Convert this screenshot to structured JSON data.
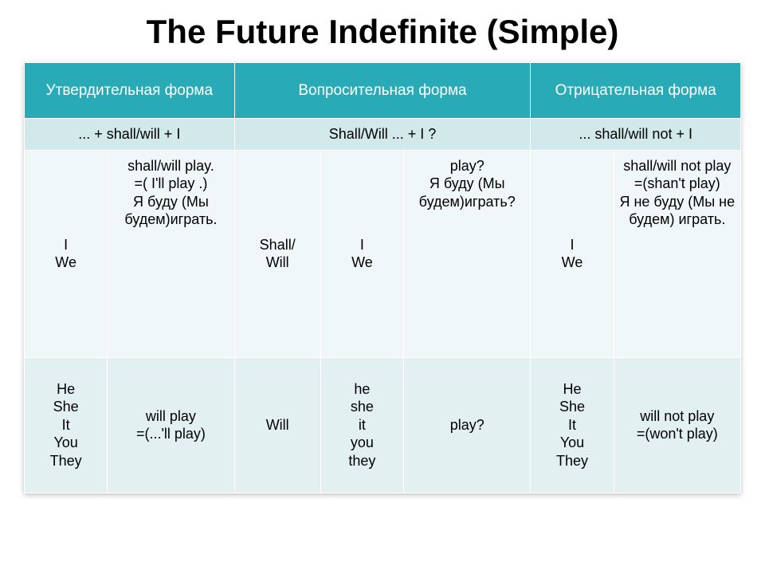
{
  "title": "The Future Indefinite (Simple)",
  "table": {
    "header_bg": "#29abb7",
    "header_color": "#ffffff",
    "formula_bg": "#d2e9eb",
    "row1_bg": "#eff7f8",
    "row2_bg": "#e2f0f2",
    "border_color": "#ffffff",
    "font_family": "Arial",
    "title_fontsize": 42,
    "header_fontsize": 19,
    "cell_fontsize": 18,
    "columns_pct": [
      10.6,
      16.2,
      11,
      10.6,
      16.2,
      10.6,
      16.2
    ],
    "headers": {
      "affirmative": "Утвердительная форма",
      "interrogative": "Вопросительная форма",
      "negative": "Отрицательная форма"
    },
    "formulas": {
      "affirmative": "...  + shall/will + I",
      "interrogative": "Shall/Will ... +  I ?",
      "negative": "... shall/will not +  I"
    },
    "row1": {
      "aff_pron": "I\nWe",
      "aff_text": "shall/will play.\n =( I'll play .)\nЯ буду (Мы будем)играть.",
      "int_aux": "Shall/\nWill",
      "int_pron": "I\nWe",
      "int_text": "play?\nЯ буду (Мы будем)играть?",
      "neg_pron": "I\nWe",
      "neg_text": "shall/will not play\n =(shan't play)\nЯ не буду (Мы не будем) играть."
    },
    "row2": {
      "aff_pron": "He\nShe\nIt\nYou\nThey",
      "aff_text": "will play\n =(...'ll play)",
      "int_aux": "Will",
      "int_pron": "he\nshe\nit\nyou\nthey",
      "int_text": "play?",
      "neg_pron": "He\nShe\nIt\nYou\nThey",
      "neg_text": "will not play\n=(won't play)"
    }
  }
}
